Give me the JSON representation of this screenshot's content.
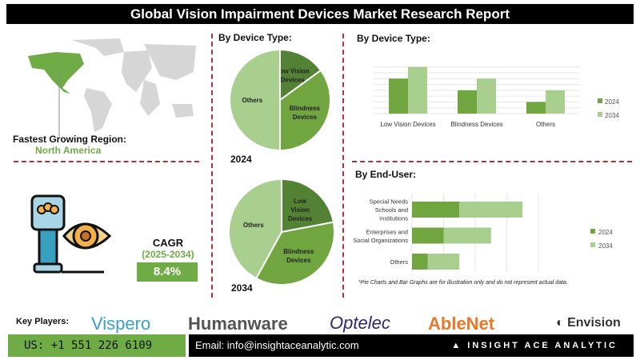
{
  "title": "Global Vision Impairment Devices Market Research Report",
  "region": {
    "label": "Fastest Growing Region:",
    "value": "North America",
    "highlight_color": "#6fac46"
  },
  "cagr": {
    "label": "CAGR",
    "period": "(2025-2034)",
    "value": "8.4%"
  },
  "colors": {
    "dark": "#548235",
    "mid": "#70a540",
    "light": "#a9cf8e",
    "light_alt": "#8fbc6a"
  },
  "chart_data": [
    {
      "type": "pie",
      "title": "By Device Type:",
      "year_label": "2024",
      "slices": [
        {
          "label": "Low Vision Devices",
          "value": 15
        },
        {
          "label": "Blindness Devices",
          "value": 35
        },
        {
          "label": "Others",
          "value": 50
        }
      ]
    },
    {
      "type": "pie",
      "year_label": "2034",
      "slices": [
        {
          "label": "Low Vision Devices",
          "value": 22
        },
        {
          "label": "Blindness Devices",
          "value": 36
        },
        {
          "label": "Others",
          "value": 42
        }
      ]
    },
    {
      "type": "bar",
      "title": "By Device Type:",
      "categories": [
        "Low Vision Devices",
        "Blindness Devices",
        "Others"
      ],
      "series": [
        {
          "name": "2024",
          "values": [
            6,
            4,
            2
          ]
        },
        {
          "name": "2034",
          "values": [
            8,
            6,
            4
          ]
        }
      ],
      "ylim": [
        0,
        8.5
      ],
      "grid": true,
      "legend": "right"
    },
    {
      "type": "bar",
      "orientation": "horizontal",
      "stacked": true,
      "title": "By End-User:",
      "categories": [
        [
          "Special Needs",
          "Schools and",
          "Institutions"
        ],
        [
          "Enterprises and",
          "Social Organizations"
        ],
        [
          "Others"
        ]
      ],
      "series": [
        {
          "name": "2024",
          "values": [
            1.5,
            1,
            0.5
          ]
        },
        {
          "name": "2034",
          "values": [
            2,
            1.5,
            1
          ]
        }
      ],
      "xlim": [
        0,
        4
      ],
      "grid": true,
      "legend": "right"
    }
  ],
  "note": "*Pie Charts and Bar Graphs are for illustration only and do not represent actual data.",
  "footer": {
    "key_players_label": "Key Players:",
    "players": [
      "Vispero",
      "Humanware",
      "Optelec",
      "AbleNet",
      "Envision"
    ],
    "phone": "US: +1 551 226 6109",
    "email": "Email: info@insightaceanalytic.com",
    "brand": "INSIGHT ACE ANALYTIC"
  }
}
